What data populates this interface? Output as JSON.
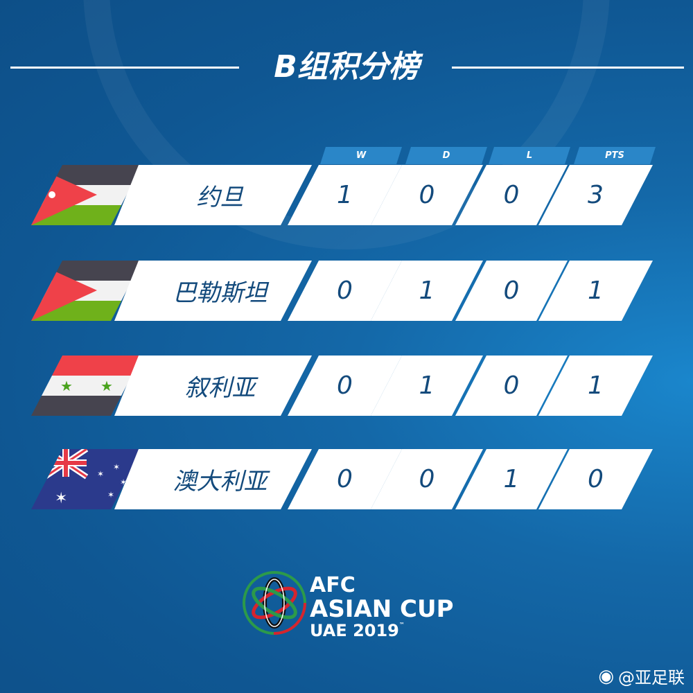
{
  "title": "B组积分榜",
  "headers": [
    "W",
    "D",
    "L",
    "PTS"
  ],
  "rows": [
    {
      "team": "约旦",
      "flag": "jordan-flag",
      "w": "1",
      "d": "0",
      "l": "0",
      "pts": "3"
    },
    {
      "team": "巴勒斯坦",
      "flag": "palestine-flag",
      "w": "0",
      "d": "1",
      "l": "0",
      "pts": "1"
    },
    {
      "team": "叙利亚",
      "flag": "syria-flag",
      "w": "0",
      "d": "1",
      "l": "0",
      "pts": "1"
    },
    {
      "team": "澳大利亚",
      "flag": "australia-flag",
      "w": "0",
      "d": "0",
      "l": "1",
      "pts": "0"
    }
  ],
  "logo": {
    "line1": "AFC",
    "line2": "ASIAN CUP",
    "line3": "UAE 2019",
    "tm": "™"
  },
  "watermark": "@亚足联",
  "colors": {
    "text": "#134a7c",
    "header_tab": "#2a86c8",
    "background": "#1468a8"
  }
}
